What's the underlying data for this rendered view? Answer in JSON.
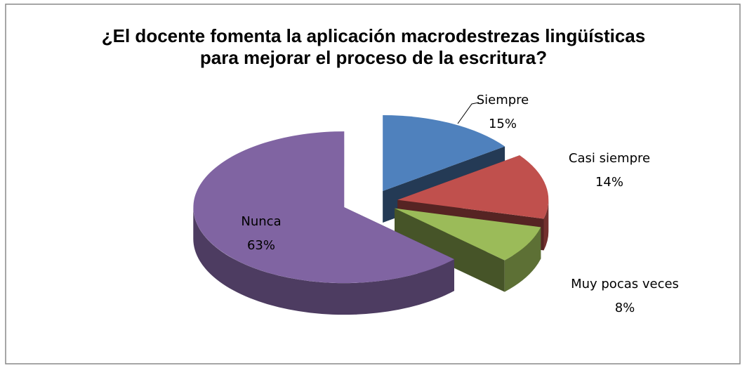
{
  "chart_data": {
    "type": "pie",
    "title": "¿El docente fomenta la aplicación macrodestrezas lingüísticas para mejorar el proceso de la escritura?",
    "categories": [
      "Siempre",
      "Casi siempre",
      "Muy pocas veces",
      "Nunca"
    ],
    "values": [
      15,
      14,
      8,
      63
    ],
    "value_labels": [
      "15%",
      "14%",
      "8%",
      "63%"
    ],
    "colors": [
      "#4f81bd",
      "#c0504d",
      "#9bbb59",
      "#8064a2"
    ],
    "three_d": true,
    "exploded": true
  }
}
